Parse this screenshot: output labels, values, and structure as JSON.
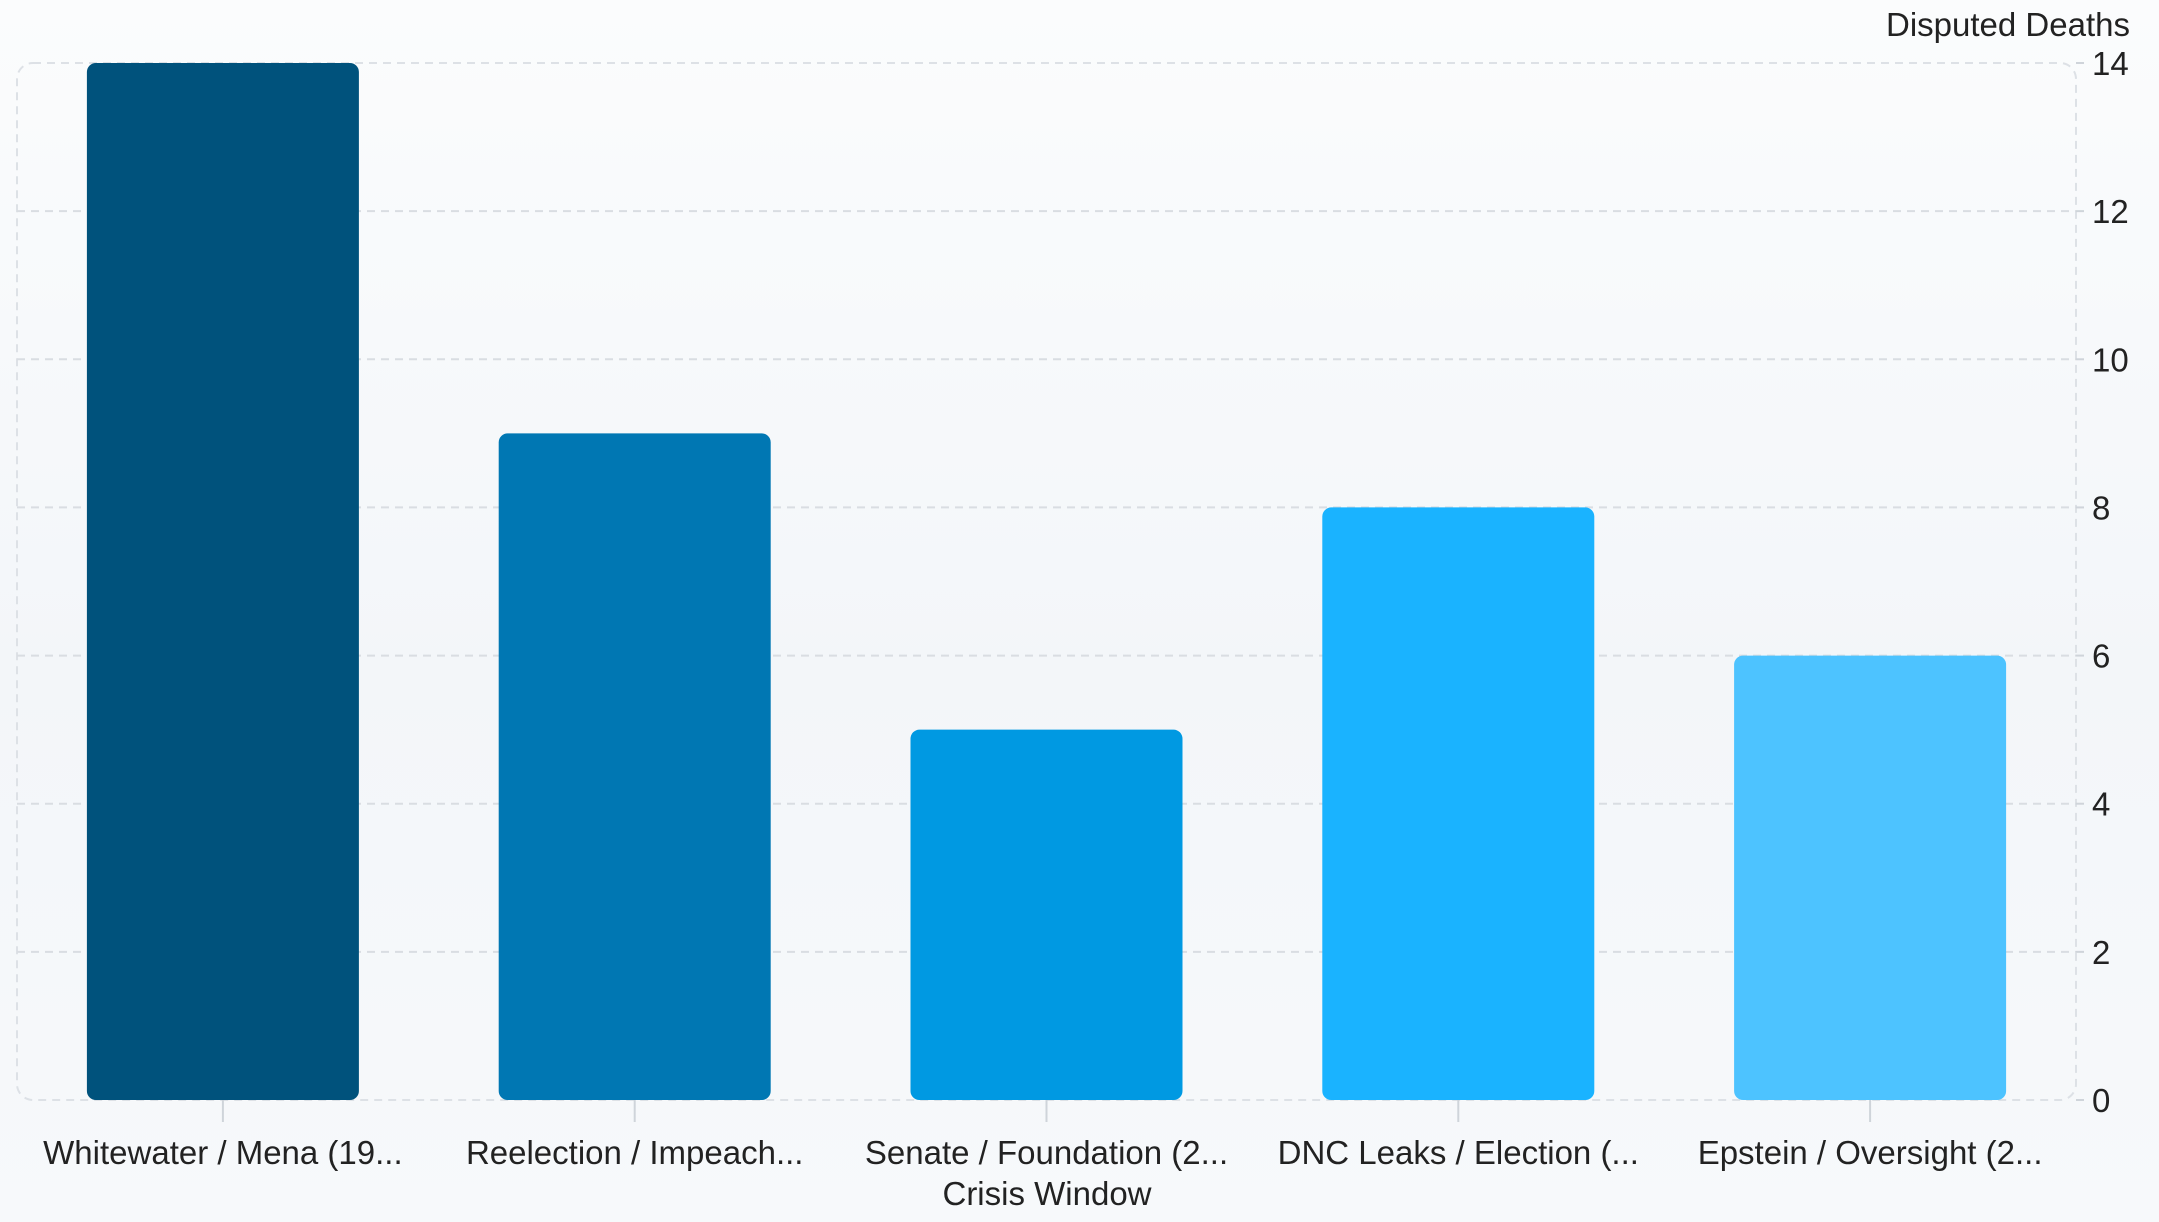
{
  "chart_data": {
    "type": "bar",
    "categories": [
      "Whitewater / Mena (19...",
      "Reelection / Impeach...",
      "Senate / Foundation (2...",
      "DNC Leaks / Election (...",
      "Epstein / Oversight (2..."
    ],
    "values": [
      14,
      9,
      5,
      8,
      6
    ],
    "bar_colors": [
      "#00527c",
      "#0077b3",
      "#0099e2",
      "#1ab3ff",
      "#4dc3ff"
    ],
    "xlabel": "Crisis Window",
    "ylabel": "Disputed Deaths",
    "ylim": [
      0,
      14
    ],
    "yticks": [
      0,
      2,
      4,
      6,
      8,
      10,
      12,
      14
    ],
    "y_axis_position": "right",
    "grid": true
  }
}
